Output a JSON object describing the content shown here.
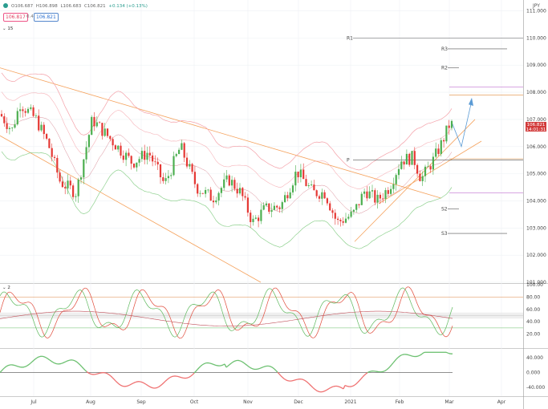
{
  "header": {
    "ohlc": {
      "o": "O106.687",
      "h": "H106.898",
      "l": "L106.683",
      "c": "C106.821",
      "chg": "+0.134 (+0.13%)"
    },
    "bid": "106.817",
    "spread": "0.4",
    "ask": "106.821",
    "currency": "JPY"
  },
  "indicators": {
    "main_period": "15",
    "osc1_period": "2"
  },
  "last_price": {
    "value": "106.821",
    "countdown": "14:01:31"
  },
  "chart_data": {
    "type": "candlestick",
    "x_ticks": [
      "Jul",
      "Aug",
      "Sep",
      "Oct",
      "Nov",
      "Dec",
      "2021",
      "Feb",
      "Mar",
      "Apr"
    ],
    "y_ticks": [
      "111.000",
      "110.000",
      "109.000",
      "108.000",
      "107.000",
      "106.000",
      "105.000",
      "104.000",
      "103.000",
      "102.000",
      "101.000"
    ],
    "y_range": [
      101,
      111.4
    ],
    "pivot_labels": [
      "R1",
      "R3",
      "R2",
      "P",
      "S2",
      "S3"
    ],
    "pivot_values": [
      110.0,
      109.6,
      108.9,
      105.5,
      103.7,
      102.8
    ],
    "osc1_ticks": [
      "100.00",
      "80.00",
      "60.00",
      "40.00",
      "20.00"
    ],
    "osc1_range": [
      0,
      100
    ],
    "osc2_ticks": [
      "40.000",
      "0.000",
      "-40.000"
    ],
    "osc2_range": [
      -60,
      60
    ],
    "colors": {
      "up": "#4caf50",
      "down": "#e53935",
      "channel": "#f5a25d",
      "band": "#f4a0a8",
      "band_low": "#8fd18f",
      "pivot": "#555555"
    }
  }
}
